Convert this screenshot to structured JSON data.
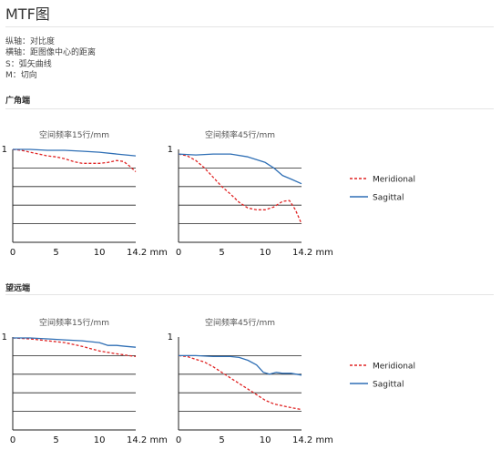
{
  "page": {
    "title": "MTF图",
    "legend_lines": [
      "纵轴：对比度",
      "横轴：距图像中心的距离",
      "S：弧矢曲线",
      "M：切向"
    ]
  },
  "sections": [
    {
      "title": "广角端"
    },
    {
      "title": "望远端"
    }
  ],
  "colors": {
    "meridional": "#e02424",
    "sagittal": "#2f6fb5",
    "grid": "#222222"
  },
  "chart_data": [
    {
      "type": "line",
      "section": "广角端",
      "title": "空间频率15行/mm",
      "xlabel": "",
      "ylabel": "",
      "xlim": [
        0,
        14.2
      ],
      "ylim": [
        0,
        1
      ],
      "xticks": [
        {
          "v": 0,
          "label": "0"
        },
        {
          "v": 5,
          "label": "5"
        },
        {
          "v": 10,
          "label": "10"
        },
        {
          "v": 14.2,
          "label": "14.2 mm"
        }
      ],
      "yticks": [
        {
          "v": 1,
          "label": "1"
        }
      ],
      "series": [
        {
          "name": "Meridional",
          "style": "dashed",
          "color": "#e02424",
          "x": [
            0,
            1,
            2,
            3,
            4,
            5,
            6,
            7,
            8,
            9,
            10,
            11,
            12,
            12.8,
            13.5,
            14.2
          ],
          "y": [
            1,
            0.99,
            0.97,
            0.95,
            0.93,
            0.92,
            0.9,
            0.87,
            0.85,
            0.85,
            0.85,
            0.86,
            0.88,
            0.87,
            0.82,
            0.76
          ]
        },
        {
          "name": "Sagittal",
          "style": "solid",
          "color": "#2f6fb5",
          "x": [
            0,
            2,
            4,
            6,
            8,
            10,
            12,
            14.2
          ],
          "y": [
            1,
            1,
            0.99,
            0.99,
            0.98,
            0.97,
            0.95,
            0.93
          ]
        }
      ]
    },
    {
      "type": "line",
      "section": "广角端",
      "title": "空间频率45行/mm",
      "xlabel": "",
      "ylabel": "",
      "xlim": [
        0,
        14.2
      ],
      "ylim": [
        0,
        1
      ],
      "xticks": [
        {
          "v": 0,
          "label": "0"
        },
        {
          "v": 5,
          "label": "5"
        },
        {
          "v": 10,
          "label": "10"
        },
        {
          "v": 14.2,
          "label": "14.2 mm"
        }
      ],
      "yticks": [
        {
          "v": 1,
          "label": "1"
        }
      ],
      "series": [
        {
          "name": "Meridional",
          "style": "dashed",
          "color": "#e02424",
          "x": [
            0,
            1,
            2,
            3,
            4,
            5,
            6,
            7,
            8,
            9,
            10,
            11,
            12,
            12.8,
            13.5,
            14.2
          ],
          "y": [
            0.95,
            0.93,
            0.88,
            0.8,
            0.7,
            0.6,
            0.52,
            0.43,
            0.37,
            0.35,
            0.35,
            0.38,
            0.44,
            0.45,
            0.35,
            0.2
          ]
        },
        {
          "name": "Sagittal",
          "style": "solid",
          "color": "#2f6fb5",
          "x": [
            0,
            2,
            4,
            6,
            8,
            10,
            11,
            12,
            13,
            14.2
          ],
          "y": [
            0.95,
            0.94,
            0.95,
            0.95,
            0.92,
            0.86,
            0.8,
            0.72,
            0.68,
            0.63
          ]
        }
      ]
    },
    {
      "type": "line",
      "section": "望远端",
      "title": "空间频率15行/mm",
      "xlabel": "",
      "ylabel": "",
      "xlim": [
        0,
        14.2
      ],
      "ylim": [
        0,
        1
      ],
      "xticks": [
        {
          "v": 0,
          "label": "0"
        },
        {
          "v": 5,
          "label": "5"
        },
        {
          "v": 10,
          "label": "10"
        },
        {
          "v": 14.2,
          "label": "14.2 mm"
        }
      ],
      "yticks": [
        {
          "v": 1,
          "label": "1"
        }
      ],
      "series": [
        {
          "name": "Meridional",
          "style": "dashed",
          "color": "#e02424",
          "x": [
            0,
            2,
            4,
            6,
            8,
            10,
            12,
            14.2
          ],
          "y": [
            0.99,
            0.98,
            0.96,
            0.94,
            0.9,
            0.85,
            0.82,
            0.79
          ]
        },
        {
          "name": "Sagittal",
          "style": "solid",
          "color": "#2f6fb5",
          "x": [
            0,
            2,
            4,
            6,
            8,
            10,
            11,
            12,
            13,
            14.2
          ],
          "y": [
            0.99,
            0.99,
            0.98,
            0.97,
            0.96,
            0.94,
            0.91,
            0.91,
            0.9,
            0.89
          ]
        }
      ]
    },
    {
      "type": "line",
      "section": "望远端",
      "title": "空间频率45行/mm",
      "xlabel": "",
      "ylabel": "",
      "xlim": [
        0,
        14.2
      ],
      "ylim": [
        0,
        1
      ],
      "xticks": [
        {
          "v": 0,
          "label": "0"
        },
        {
          "v": 5,
          "label": "5"
        },
        {
          "v": 10,
          "label": "10"
        },
        {
          "v": 14.2,
          "label": "14.2 mm"
        }
      ],
      "yticks": [
        {
          "v": 1,
          "label": "1"
        }
      ],
      "series": [
        {
          "name": "Meridional",
          "style": "dashed",
          "color": "#e02424",
          "x": [
            0,
            1,
            2,
            3,
            4,
            5,
            6,
            7,
            8,
            9,
            10,
            11,
            12,
            13,
            14.2
          ],
          "y": [
            0.8,
            0.79,
            0.76,
            0.73,
            0.68,
            0.62,
            0.56,
            0.5,
            0.44,
            0.38,
            0.32,
            0.28,
            0.26,
            0.24,
            0.22
          ]
        },
        {
          "name": "Sagittal",
          "style": "solid",
          "color": "#2f6fb5",
          "x": [
            0,
            2,
            4,
            6,
            7,
            8,
            9,
            9.8,
            10.5,
            11.3,
            12,
            13,
            14.2
          ],
          "y": [
            0.8,
            0.8,
            0.79,
            0.79,
            0.78,
            0.75,
            0.7,
            0.62,
            0.6,
            0.62,
            0.61,
            0.61,
            0.59
          ]
        }
      ]
    }
  ],
  "legend": [
    {
      "section": "广角端",
      "items": [
        {
          "name": "Meridional",
          "style": "dashed",
          "color": "#e02424"
        },
        {
          "name": "Sagittal",
          "style": "solid",
          "color": "#2f6fb5"
        }
      ]
    },
    {
      "section": "望远端",
      "items": [
        {
          "name": "Meridional",
          "style": "dashed",
          "color": "#e02424"
        },
        {
          "name": "Sagittal",
          "style": "solid",
          "color": "#2f6fb5"
        }
      ]
    }
  ]
}
